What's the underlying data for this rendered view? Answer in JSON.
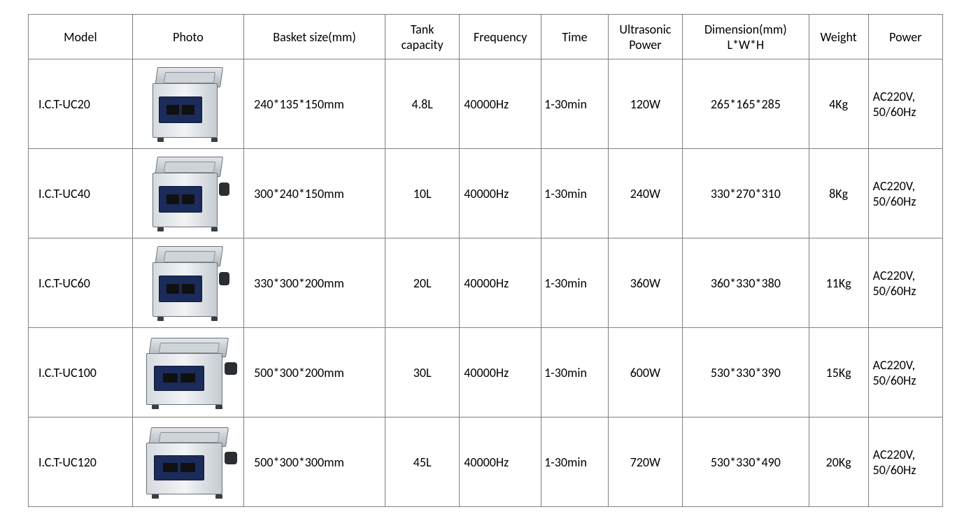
{
  "table": {
    "columns": [
      "Model",
      "Photo",
      "Basket size(mm)",
      "Tank capacity",
      "Frequency",
      "Time",
      "Ultrasonic Power",
      "Dimension(mm) L*W*H",
      "Weight",
      "Power"
    ],
    "rows": [
      {
        "model": "I.C.T-UC20",
        "basket": "240*135*150mm",
        "tank": "4.8L",
        "freq": "40000Hz",
        "time": "1-30min",
        "upower": "120W",
        "dim": "265*165*285",
        "weight": "4Kg",
        "power": "AC220V, 50/60Hz",
        "wide": false
      },
      {
        "model": "I.C.T-UC40",
        "basket": "300*240*150mm",
        "tank": "10L",
        "freq": "40000Hz",
        "time": "1-30min",
        "upower": "240W",
        "dim": "330*270*310",
        "weight": "8Kg",
        "power": "AC220V, 50/60Hz",
        "wide": false
      },
      {
        "model": "I.C.T-UC60",
        "basket": "330*300*200mm",
        "tank": "20L",
        "freq": "40000Hz",
        "time": "1-30min",
        "upower": "360W",
        "dim": "360*330*380",
        "weight": "11Kg",
        "power": "AC220V, 50/60Hz",
        "wide": false
      },
      {
        "model": "I.C.T-UC100",
        "basket": "500*300*200mm",
        "tank": "30L",
        "freq": "40000Hz",
        "time": "1-30min",
        "upower": "600W",
        "dim": "530*330*390",
        "weight": "15Kg",
        "power": "AC220V, 50/60Hz",
        "wide": true
      },
      {
        "model": "I.C.T-UC120",
        "basket": "500*300*300mm",
        "tank": "45L",
        "freq": "40000Hz",
        "time": "1-30min",
        "upower": "720W",
        "dim": "530*330*490",
        "weight": "20Kg",
        "power": "AC220V, 50/60Hz",
        "wide": true
      }
    ],
    "border_color": "#808080",
    "text_color": "#000000",
    "font_family": "Calibri",
    "header_fontsize": 18,
    "body_fontsize": 18
  }
}
